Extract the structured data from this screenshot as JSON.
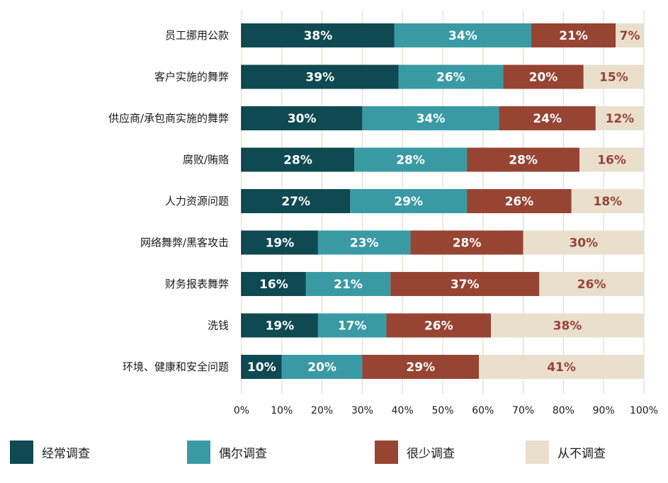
{
  "chart_data": {
    "type": "bar",
    "orientation": "horizontal",
    "stacked": true,
    "percent_stacked": true,
    "categories": [
      "员工挪用公款",
      "客户实施的舞弊",
      "供应商/承包商实施的舞弊",
      "腐败/贿赂",
      "人力资源问题",
      "网络舞弊/黑客攻击",
      "财务报表舞弊",
      "洗钱",
      "环境、健康和安全问题"
    ],
    "series": [
      {
        "name": "经常调查",
        "color": "#0f4a52",
        "label_color": "#ffffff",
        "values": [
          38,
          39,
          30,
          28,
          27,
          19,
          16,
          19,
          10
        ]
      },
      {
        "name": "偶尔调查",
        "color": "#3a9aa4",
        "label_color": "#ffffff",
        "values": [
          34,
          26,
          34,
          28,
          29,
          23,
          21,
          17,
          20
        ]
      },
      {
        "name": "很少调查",
        "color": "#974433",
        "label_color": "#ffffff",
        "values": [
          21,
          20,
          24,
          28,
          26,
          28,
          37,
          26,
          29
        ]
      },
      {
        "name": "从不调查",
        "color": "#eadfcd",
        "label_color": "#974433",
        "values": [
          7,
          15,
          12,
          16,
          18,
          30,
          26,
          38,
          41
        ]
      }
    ],
    "xlim": [
      0,
      100
    ],
    "x_ticks": [
      "0%",
      "10%",
      "20%",
      "30%",
      "40%",
      "50%",
      "60%",
      "70%",
      "80%",
      "90%",
      "100%"
    ],
    "grid": "vertical",
    "legend_position": "bottom",
    "title": "",
    "xlabel": "",
    "ylabel": ""
  }
}
